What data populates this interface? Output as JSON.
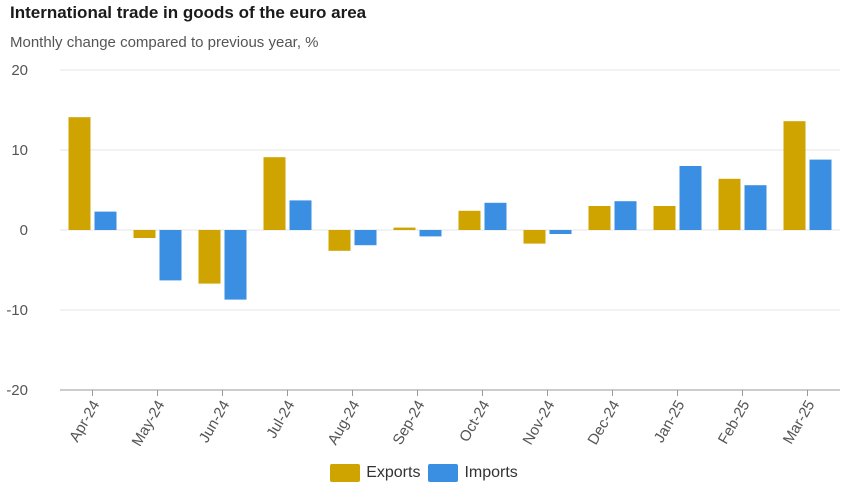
{
  "header": {
    "title": "International trade in goods of the euro area",
    "subtitle": "Monthly change compared to previous year, %"
  },
  "colors": {
    "exports": "#cfa400",
    "imports": "#3b8fe3",
    "grid": "#e6e6e6",
    "axis": "#999999",
    "text": "#555555"
  },
  "chart_data": {
    "type": "bar",
    "categories": [
      "Apr-24",
      "May-24",
      "Jun-24",
      "Jul-24",
      "Aug-24",
      "Sep-24",
      "Oct-24",
      "Nov-24",
      "Dec-24",
      "Jan-25",
      "Feb-25",
      "Mar-25"
    ],
    "series": [
      {
        "name": "Exports",
        "values": [
          14.1,
          -1.0,
          -6.7,
          9.1,
          -2.6,
          0.3,
          2.4,
          -1.7,
          3.0,
          3.0,
          6.4,
          13.6
        ]
      },
      {
        "name": "Imports",
        "values": [
          2.3,
          -6.3,
          -8.7,
          3.7,
          -1.9,
          -0.8,
          3.4,
          -0.5,
          3.6,
          8.0,
          5.6,
          8.8
        ]
      }
    ],
    "yticks": [
      20,
      10,
      0,
      -10,
      -20
    ],
    "ylim": [
      -20,
      20
    ],
    "title": "International trade in goods of the euro area",
    "subtitle": "Monthly change compared to previous year, %",
    "xlabel": "",
    "ylabel": "",
    "grid": true,
    "legend": "bottom"
  }
}
